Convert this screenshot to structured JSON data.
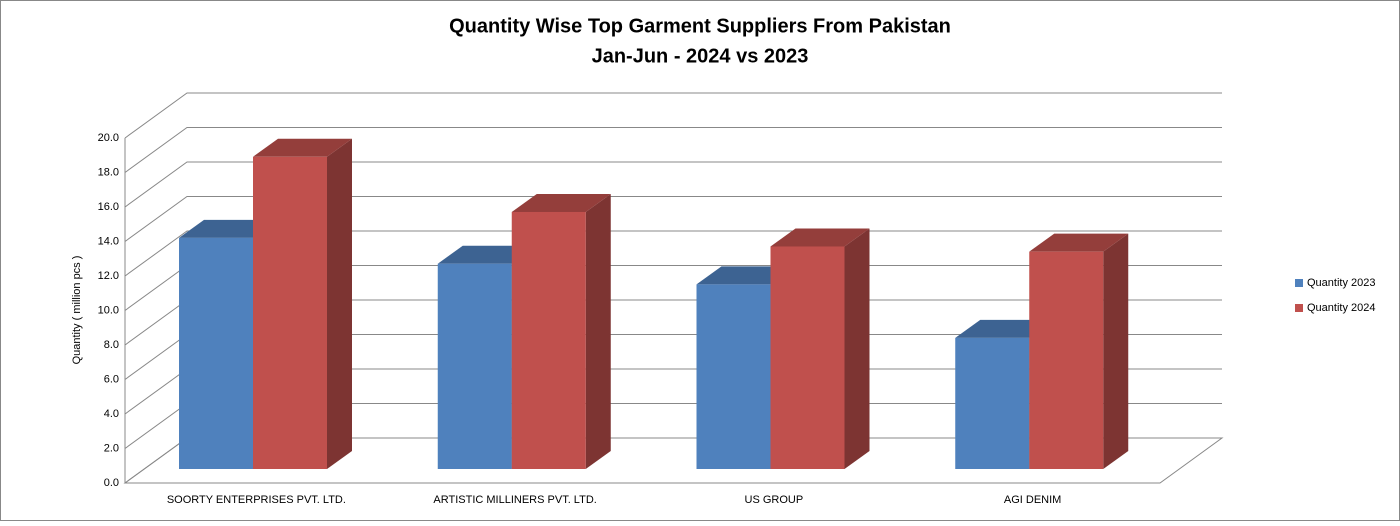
{
  "chart_data": {
    "type": "bar3d",
    "title": "Quantity Wise Top Garment Suppliers From Pakistan",
    "subtitle": "Jan-Jun - 2024 vs 2023",
    "y_label": "Quantity ( million pcs )",
    "categories": [
      "SOORTY ENTERPRISES PVT. LTD.",
      "ARTISTIC MILLINERS PVT. LTD.",
      "US GROUP",
      "AGI DENIM"
    ],
    "series": [
      {
        "name": "Quantity 2023",
        "color": "#4f81bd",
        "values": [
          13.4,
          11.9,
          10.7,
          7.6
        ]
      },
      {
        "name": "Quantity 2024",
        "color": "#c0504d",
        "values": [
          18.1,
          14.9,
          12.9,
          12.6
        ]
      }
    ],
    "ylim": [
      0,
      20
    ],
    "yticks": [
      {
        "value": 0,
        "label": "0.0"
      },
      {
        "value": 2,
        "label": "2.0"
      },
      {
        "value": 4,
        "label": "4.0"
      },
      {
        "value": 6,
        "label": "6.0"
      },
      {
        "value": 8,
        "label": "8.0"
      },
      {
        "value": 10,
        "label": "10.0"
      },
      {
        "value": 12,
        "label": "12.0"
      },
      {
        "value": 14,
        "label": "14.0"
      },
      {
        "value": 16,
        "label": "16.0"
      },
      {
        "value": 18,
        "label": "18.0"
      },
      {
        "value": 20,
        "label": "20.0"
      }
    ],
    "grid": true,
    "legend": "right"
  }
}
